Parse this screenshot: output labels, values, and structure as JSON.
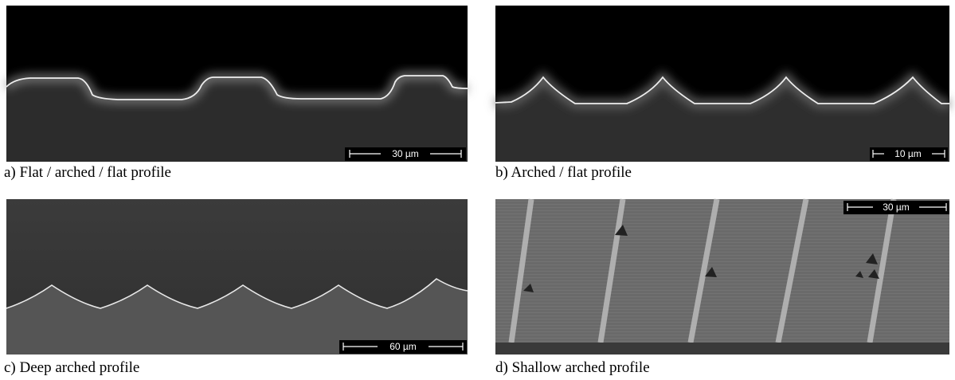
{
  "panels": [
    {
      "caption": "a) Flat / arched / flat profile",
      "scale_bar": "30 µm"
    },
    {
      "caption": "b) Arched / flat profile",
      "scale_bar": "10 µm"
    },
    {
      "caption": "c) Deep arched profile",
      "scale_bar": "60 µm"
    },
    {
      "caption": "d) Shallow arched profile",
      "scale_bar": "30 µm"
    }
  ]
}
